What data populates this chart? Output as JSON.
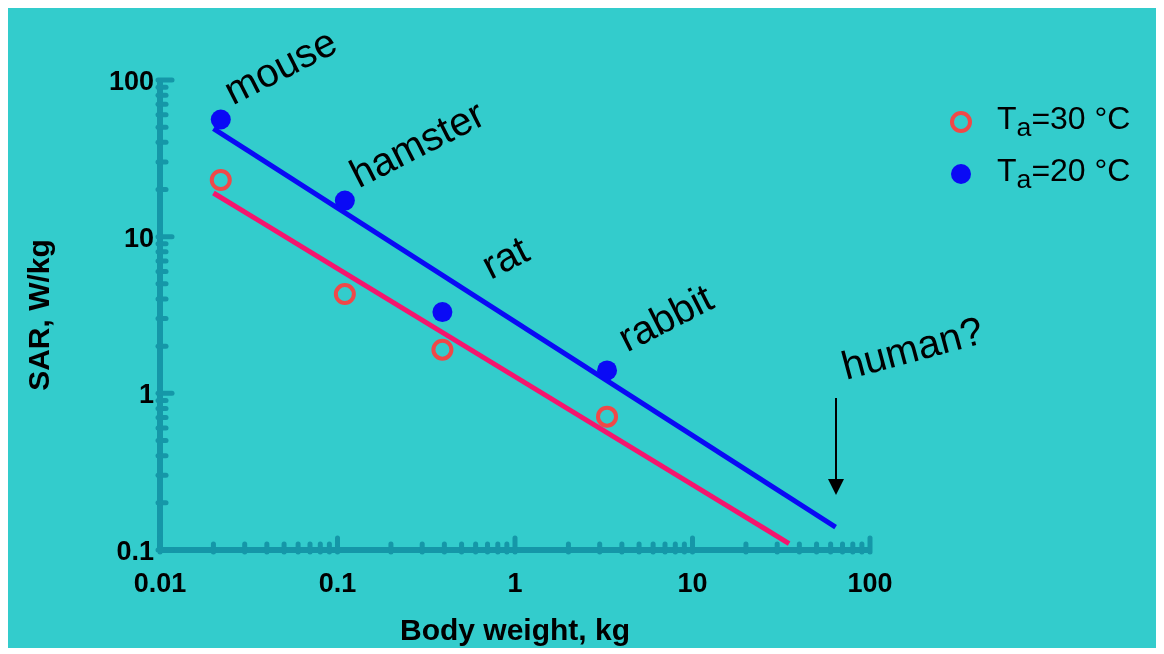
{
  "chart_data": {
    "type": "scatter",
    "xlabel": "Body weight, kg",
    "ylabel": "SAR, W/kg",
    "log": "xy",
    "legend": "top right",
    "xlim": [
      0.01,
      100
    ],
    "ylim": [
      0.1,
      100
    ],
    "xticks": [
      0.01,
      {
        "value": 0.02,
        "label": null
      },
      {
        "value": 0.03,
        "label": null
      },
      {
        "value": 0.04,
        "label": null
      },
      {
        "value": 0.05,
        "label": null
      },
      {
        "value": 0.06,
        "label": null
      },
      {
        "value": 0.07,
        "label": null
      },
      {
        "value": 0.08,
        "label": null
      },
      {
        "value": 0.09,
        "label": null
      },
      0.1,
      {
        "value": 0.2,
        "label": null
      },
      {
        "value": 0.3,
        "label": null
      },
      {
        "value": 0.4,
        "label": null
      },
      {
        "value": 0.5,
        "label": null
      },
      {
        "value": 0.6,
        "label": null
      },
      {
        "value": 0.7,
        "label": null
      },
      {
        "value": 0.8,
        "label": null
      },
      {
        "value": 0.9,
        "label": null
      },
      1,
      {
        "value": 2,
        "label": null
      },
      {
        "value": 3,
        "label": null
      },
      {
        "value": 4,
        "label": null
      },
      {
        "value": 5,
        "label": null
      },
      {
        "value": 6,
        "label": null
      },
      {
        "value": 7,
        "label": null
      },
      {
        "value": 8,
        "label": null
      },
      {
        "value": 9,
        "label": null
      },
      10,
      {
        "value": 20,
        "label": null
      },
      {
        "value": 30,
        "label": null
      },
      {
        "value": 40,
        "label": null
      },
      {
        "value": 50,
        "label": null
      },
      {
        "value": 60,
        "label": null
      },
      {
        "value": 70,
        "label": null
      },
      {
        "value": 80,
        "label": null
      },
      {
        "value": 90,
        "label": null
      },
      100
    ],
    "yticks": [
      0.1,
      {
        "value": 0.2,
        "label": null
      },
      {
        "value": 0.3,
        "label": null
      },
      {
        "value": 0.4,
        "label": null
      },
      {
        "value": 0.5,
        "label": null
      },
      {
        "value": 0.6,
        "label": null
      },
      {
        "value": 0.7,
        "label": null
      },
      {
        "value": 0.8,
        "label": null
      },
      {
        "value": 0.9,
        "label": null
      },
      1,
      {
        "value": 2,
        "label": null
      },
      {
        "value": 3,
        "label": null
      },
      {
        "value": 4,
        "label": null
      },
      {
        "value": 5,
        "label": null
      },
      {
        "value": 6,
        "label": null
      },
      {
        "value": 7,
        "label": null
      },
      {
        "value": 8,
        "label": null
      },
      {
        "value": 9,
        "label": null
      },
      10,
      {
        "value": 20,
        "label": null
      },
      {
        "value": 30,
        "label": null
      },
      {
        "value": 40,
        "label": null
      },
      {
        "value": 50,
        "label": null
      },
      {
        "value": 60,
        "label": null
      },
      {
        "value": 70,
        "label": null
      },
      {
        "value": 80,
        "label": null
      },
      {
        "value": 90,
        "label": null
      },
      100
    ],
    "series": [
      {
        "name": "T$_{a}$=30 °C",
        "color": "#f04848",
        "marker": "circle",
        "x": [
          0.022,
          0.11,
          0.39,
          3.3
        ],
        "values": [
          23,
          4.3,
          1.9,
          0.71
        ]
      },
      {
        "name": "T$_{a}$=20 °C",
        "color": "#0a0af5",
        "marker": "circle",
        "x": [
          0.022,
          0.11,
          0.39,
          3.3
        ],
        "values": [
          56,
          17,
          3.3,
          1.4
        ]
      },
      {
        "type": "line",
        "color": "#f5156e",
        "marker": "none",
        "x": [
          0.02,
          35
        ],
        "values": [
          19,
          0.11
        ]
      },
      {
        "type": "line",
        "color": "#0a0af5",
        "marker": "none",
        "x": [
          0.02,
          64
        ],
        "values": [
          49,
          0.14
        ]
      }
    ],
    "annotations": [
      {
        "text": "mouse",
        "x": 0.022,
        "y": 56
      },
      {
        "text": "hamster",
        "x": 0.11,
        "y": 17
      },
      {
        "text": "rat",
        "x": 0.39,
        "y": 3.3
      },
      {
        "text": "rabbit",
        "x": 3.3,
        "y": 1.4
      },
      "human?"
    ]
  }
}
